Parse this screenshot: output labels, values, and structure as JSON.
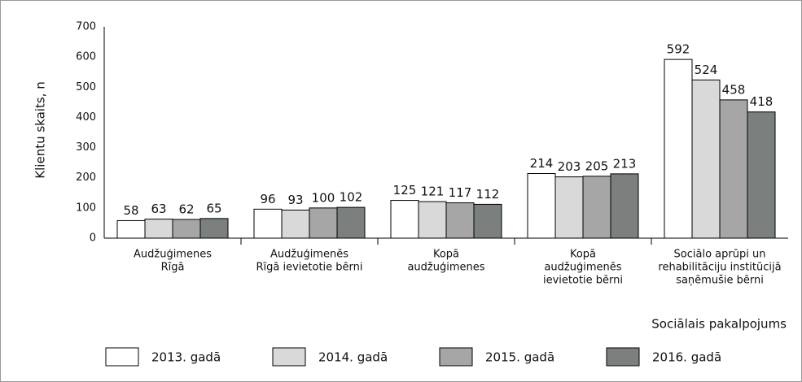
{
  "chart_data": {
    "type": "bar",
    "y_label": "Klientu skaits, n",
    "x_label": "Sociālais pakalpojums",
    "categories": [
      [
        "Audžuģimenes",
        "Rīgā"
      ],
      [
        "Audžuģimenēs",
        "Rīgā ievietotie bērni"
      ],
      [
        "Kopā",
        "audžuģimenes"
      ],
      [
        "Kopā",
        "audžuģimenēs",
        "ievietotie bērni"
      ],
      [
        "Sociālo aprūpi un",
        "rehabilitāciju institūcijā",
        "saņēmušie bērni"
      ]
    ],
    "series": [
      {
        "name": "2013. gadā",
        "color": "#ffffff",
        "values": [
          58,
          96,
          125,
          214,
          592
        ]
      },
      {
        "name": "2014. gadā",
        "color": "#d9d9d9",
        "values": [
          63,
          93,
          121,
          203,
          524
        ]
      },
      {
        "name": "2015. gadā",
        "color": "#a6a6a6",
        "values": [
          62,
          100,
          117,
          205,
          458
        ]
      },
      {
        "name": "2016. gadā",
        "color": "#7b7f7e",
        "values": [
          65,
          102,
          112,
          213,
          418
        ]
      }
    ],
    "ylim": [
      0,
      700
    ],
    "yticks": [
      0,
      100,
      200,
      300,
      400,
      500,
      600,
      700
    ],
    "grid": false,
    "legend": "bottom"
  }
}
